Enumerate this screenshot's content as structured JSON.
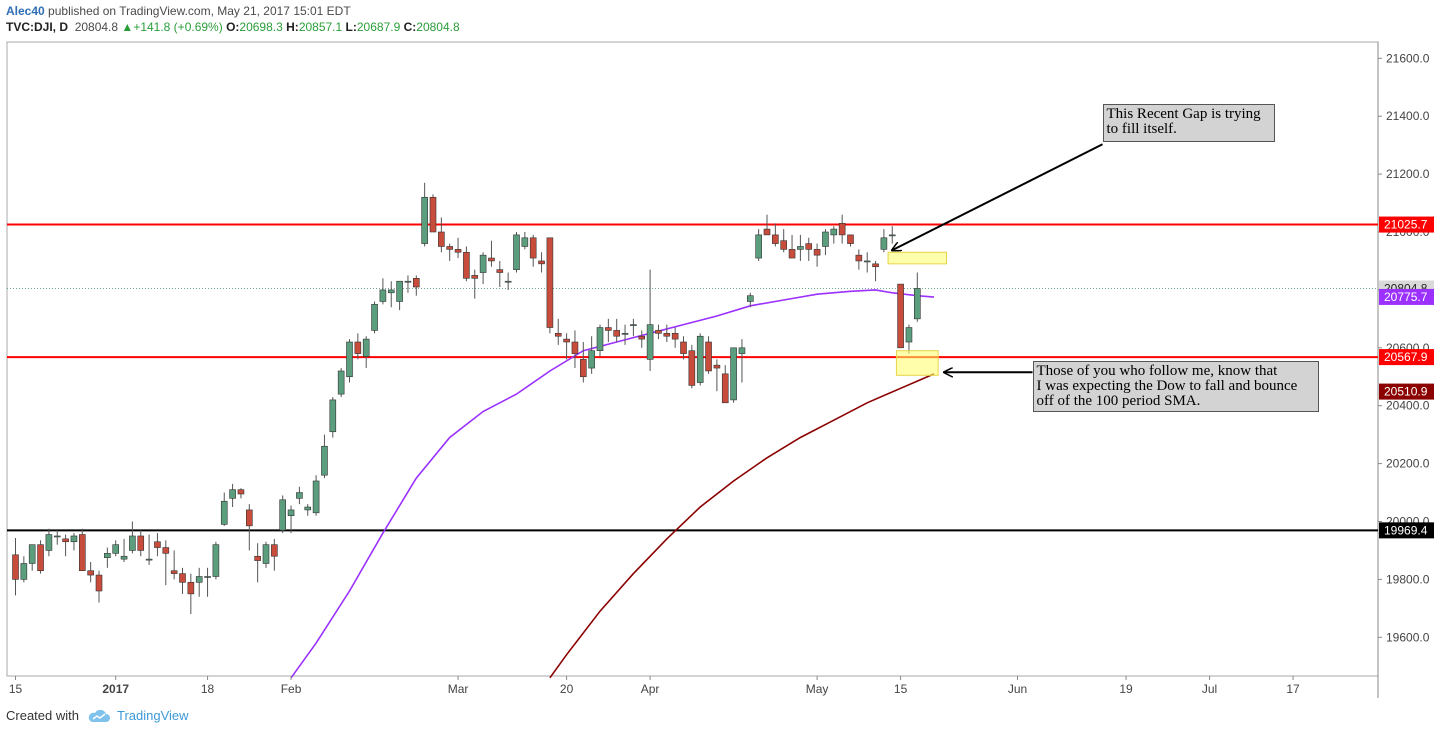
{
  "header": {
    "author": "Alec40",
    "published": "published on TradingView.com, May 21, 2017 15:01 EDT",
    "symbol": "TVC:DJI, D",
    "last": "20804.8",
    "change": "+141.8 (+0.69%)",
    "o_label": "O:",
    "o_value": "20698.3",
    "h_label": "H:",
    "h_value": "20857.1",
    "l_label": "L:",
    "l_value": "20687.9",
    "c_label": "C:",
    "c_value": "20804.8"
  },
  "footer": {
    "created_with": "Created with",
    "brand": "TradingView"
  },
  "colors": {
    "up": "#5b9e7e",
    "down": "#c84c3c",
    "sma50": "#9b30ff",
    "sma100": "#8b0000",
    "support_resistance": "#ff0000",
    "base_line": "#000000",
    "highlight": "#ffff66"
  },
  "chart_data": {
    "type": "candlestick",
    "y_axis": {
      "min": 19460,
      "max": 21650,
      "ticks": [
        19600,
        19800,
        20000,
        20200,
        20400,
        20600,
        20800,
        21000,
        21200,
        21400,
        21600
      ],
      "tick_labels": [
        "19600.0",
        "19800.0",
        "20000.0",
        "20200.0",
        "20400.0",
        "20600.0",
        "20800.0",
        "21000.0",
        "21200.0",
        "21400.0",
        "21600.0"
      ]
    },
    "x_axis": {
      "labels": [
        {
          "text": "15",
          "bar": 0
        },
        {
          "text": "2017",
          "bar": 12
        },
        {
          "text": "18",
          "bar": 23
        },
        {
          "text": "Feb",
          "bar": 33
        },
        {
          "text": "Mar",
          "bar": 53
        },
        {
          "text": "20",
          "bar": 66
        },
        {
          "text": "Apr",
          "bar": 76
        },
        {
          "text": "May",
          "bar": 96
        },
        {
          "text": "15",
          "bar": 106
        },
        {
          "text": "Jun",
          "bar": 120
        },
        {
          "text": "19",
          "bar": 133
        },
        {
          "text": "Jul",
          "bar": 143
        },
        {
          "text": "17",
          "bar": 153
        }
      ]
    },
    "ohlc": [
      [
        19885,
        19943,
        19745,
        19800
      ],
      [
        19800,
        19880,
        19790,
        19855
      ],
      [
        19855,
        19920,
        19830,
        19920
      ],
      [
        19920,
        19935,
        19820,
        19830
      ],
      [
        19900,
        19975,
        19880,
        19955
      ],
      [
        19950,
        19970,
        19920,
        19950
      ],
      [
        19940,
        19955,
        19880,
        19930
      ],
      [
        19930,
        19960,
        19900,
        19950
      ],
      [
        19955,
        19975,
        19830,
        19830
      ],
      [
        19830,
        19860,
        19790,
        19815
      ],
      [
        19815,
        19830,
        19720,
        19760
      ],
      [
        19875,
        19910,
        19840,
        19890
      ],
      [
        19890,
        19935,
        19880,
        19920
      ],
      [
        19870,
        19940,
        19860,
        19880
      ],
      [
        19900,
        20000,
        19890,
        19950
      ],
      [
        19950,
        19970,
        19880,
        19900
      ],
      [
        19870,
        19955,
        19850,
        19870
      ],
      [
        19930,
        19960,
        19880,
        19910
      ],
      [
        19910,
        19935,
        19780,
        19890
      ],
      [
        19830,
        19900,
        19800,
        19820
      ],
      [
        19820,
        19840,
        19750,
        19790
      ],
      [
        19790,
        19820,
        19680,
        19750
      ],
      [
        19790,
        19840,
        19740,
        19810
      ],
      [
        19810,
        19840,
        19740,
        19810
      ],
      [
        19810,
        19930,
        19800,
        19920
      ],
      [
        19990,
        20100,
        19985,
        20070
      ],
      [
        20080,
        20130,
        20050,
        20110
      ],
      [
        20110,
        20115,
        20080,
        20095
      ],
      [
        20040,
        20060,
        19900,
        19985
      ],
      [
        19880,
        19925,
        19790,
        19865
      ],
      [
        19855,
        19930,
        19840,
        19920
      ],
      [
        19920,
        19940,
        19830,
        19880
      ],
      [
        19970,
        20090,
        19960,
        20075
      ],
      [
        20020,
        20055,
        19960,
        20040
      ],
      [
        20080,
        20120,
        20060,
        20100
      ],
      [
        20040,
        20060,
        20020,
        20050
      ],
      [
        20030,
        20160,
        20020,
        20140
      ],
      [
        20160,
        20300,
        20150,
        20260
      ],
      [
        20310,
        20430,
        20290,
        20420
      ],
      [
        20440,
        20530,
        20430,
        20520
      ],
      [
        20500,
        20630,
        20480,
        20620
      ],
      [
        20620,
        20650,
        20560,
        20580
      ],
      [
        20570,
        20640,
        20530,
        20630
      ],
      [
        20660,
        20760,
        20650,
        20750
      ],
      [
        20760,
        20840,
        20750,
        20800
      ],
      [
        20790,
        20830,
        20740,
        20800
      ],
      [
        20760,
        20830,
        20730,
        20830
      ],
      [
        20830,
        20850,
        20790,
        20830
      ],
      [
        20840,
        20850,
        20780,
        20810
      ],
      [
        20960,
        21170,
        20950,
        21120
      ],
      [
        21120,
        21130,
        21000,
        21000
      ],
      [
        21000,
        21050,
        20930,
        20950
      ],
      [
        20950,
        20960,
        20900,
        20940
      ],
      [
        20940,
        20980,
        20910,
        20930
      ],
      [
        20930,
        20950,
        20830,
        20840
      ],
      [
        20850,
        20870,
        20770,
        20840
      ],
      [
        20860,
        20930,
        20820,
        20920
      ],
      [
        20910,
        20970,
        20880,
        20900
      ],
      [
        20870,
        20900,
        20810,
        20860
      ],
      [
        20830,
        20860,
        20800,
        20830
      ],
      [
        20870,
        21000,
        20860,
        20990
      ],
      [
        20950,
        21000,
        20940,
        20980
      ],
      [
        20980,
        20990,
        20880,
        20910
      ],
      [
        20900,
        20930,
        20860,
        20890
      ],
      [
        20980,
        20980,
        20650,
        20670
      ],
      [
        20650,
        20700,
        20610,
        20640
      ],
      [
        20630,
        20650,
        20560,
        20620
      ],
      [
        20620,
        20660,
        20530,
        20580
      ],
      [
        20560,
        20620,
        20480,
        20500
      ],
      [
        20530,
        20640,
        20510,
        20590
      ],
      [
        20590,
        20680,
        20570,
        20670
      ],
      [
        20670,
        20700,
        20620,
        20660
      ],
      [
        20660,
        20700,
        20620,
        20640
      ],
      [
        20650,
        20680,
        20610,
        20650
      ],
      [
        20680,
        20700,
        20640,
        20680
      ],
      [
        20640,
        20660,
        20600,
        20630
      ],
      [
        20560,
        20870,
        20520,
        20680
      ],
      [
        20660,
        20680,
        20630,
        20650
      ],
      [
        20650,
        20680,
        20620,
        20640
      ],
      [
        20650,
        20670,
        20600,
        20630
      ],
      [
        20620,
        20640,
        20560,
        20580
      ],
      [
        20590,
        20610,
        20460,
        20470
      ],
      [
        20480,
        20650,
        20470,
        20640
      ],
      [
        20620,
        20640,
        20510,
        20520
      ],
      [
        20540,
        20560,
        20450,
        20530
      ],
      [
        20510,
        20540,
        20410,
        20410
      ],
      [
        20420,
        20600,
        20410,
        20600
      ],
      [
        20580,
        20630,
        20480,
        20600
      ],
      [
        20760,
        20790,
        20740,
        20780
      ],
      [
        20910,
        21010,
        20900,
        20990
      ],
      [
        21010,
        21060,
        20990,
        20990
      ],
      [
        20990,
        21030,
        20950,
        20960
      ],
      [
        20970,
        21010,
        20930,
        20940
      ],
      [
        20940,
        20990,
        20910,
        20910
      ],
      [
        20940,
        20990,
        20900,
        20950
      ],
      [
        20960,
        20980,
        20900,
        20940
      ],
      [
        20940,
        20960,
        20880,
        20920
      ],
      [
        20950,
        21010,
        20920,
        21000
      ],
      [
        20990,
        21020,
        20960,
        21010
      ],
      [
        21030,
        21060,
        20960,
        20990
      ],
      [
        20990,
        20980,
        20950,
        20960
      ],
      [
        20920,
        20940,
        20870,
        20900
      ],
      [
        20900,
        20930,
        20860,
        20900
      ],
      [
        20890,
        20900,
        20830,
        20880
      ],
      [
        20940,
        21010,
        20930,
        20980
      ],
      [
        20990,
        21020,
        20960,
        20990
      ],
      [
        20820,
        20820,
        20600,
        20600
      ],
      [
        20620,
        20680,
        20580,
        20670
      ],
      [
        20700,
        20860,
        20690,
        20805
      ]
    ],
    "sma50": [
      [
        33,
        19460
      ],
      [
        36,
        19580
      ],
      [
        40,
        19760
      ],
      [
        44,
        19960
      ],
      [
        48,
        20150
      ],
      [
        52,
        20290
      ],
      [
        56,
        20380
      ],
      [
        60,
        20440
      ],
      [
        64,
        20520
      ],
      [
        68,
        20590
      ],
      [
        72,
        20620
      ],
      [
        76,
        20650
      ],
      [
        80,
        20680
      ],
      [
        84,
        20710
      ],
      [
        88,
        20745
      ],
      [
        92,
        20765
      ],
      [
        96,
        20785
      ],
      [
        100,
        20795
      ],
      [
        103,
        20800
      ],
      [
        105,
        20790
      ],
      [
        108,
        20780
      ],
      [
        110,
        20775
      ]
    ],
    "sma100": [
      [
        64,
        19460
      ],
      [
        66,
        19540
      ],
      [
        70,
        19690
      ],
      [
        74,
        19820
      ],
      [
        78,
        19940
      ],
      [
        82,
        20050
      ],
      [
        86,
        20140
      ],
      [
        90,
        20220
      ],
      [
        94,
        20290
      ],
      [
        98,
        20350
      ],
      [
        102,
        20410
      ],
      [
        106,
        20460
      ],
      [
        108,
        20485
      ],
      [
        110,
        20510
      ]
    ],
    "horizontal_lines": [
      {
        "value": 21025.7,
        "label": "21025.7",
        "color": "#ff0000"
      },
      {
        "value": 20567.9,
        "label": "20567.9",
        "color": "#ff0000"
      },
      {
        "value": 19969.4,
        "label": "19969.4",
        "color": "#000000"
      }
    ],
    "last_price": {
      "value": 20804.8,
      "label": "20804.8"
    },
    "price_labels": [
      {
        "value": 20775.7,
        "label": "20775.7",
        "color": "#9b30ff"
      },
      {
        "value": 20510.9,
        "label": "20510.9",
        "color": "#8b0000"
      }
    ],
    "highlights": [
      {
        "bar_start": 104.5,
        "bar_end": 111.5,
        "value_top": 20930,
        "value_bottom": 20890
      },
      {
        "bar_start": 105.5,
        "bar_end": 110.5,
        "value_top": 20590,
        "value_bottom": 20505
      }
    ],
    "annotations": [
      {
        "text": "This Recent Gap is trying\nto fill itself."
      },
      {
        "text": "Those of you who follow me, know that\nI was expecting the Dow to fall and bounce\noff of the 100 period SMA."
      }
    ]
  }
}
